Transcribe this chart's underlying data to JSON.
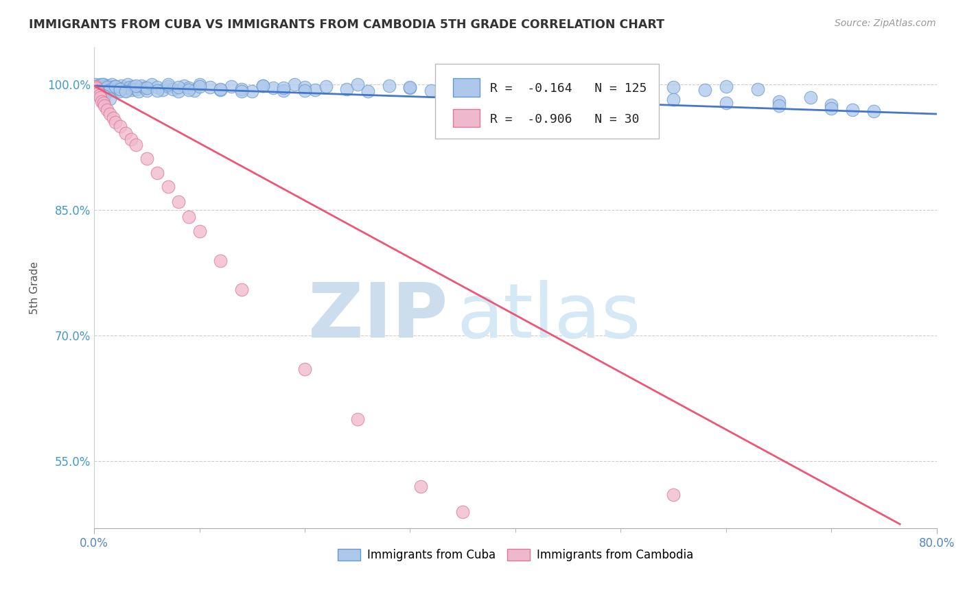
{
  "title": "IMMIGRANTS FROM CUBA VS IMMIGRANTS FROM CAMBODIA 5TH GRADE CORRELATION CHART",
  "source": "Source: ZipAtlas.com",
  "ylabel": "5th Grade",
  "xlim": [
    0.0,
    0.8
  ],
  "ylim": [
    0.47,
    1.045
  ],
  "xtick_positions": [
    0.0,
    0.8
  ],
  "xticklabels": [
    "0.0%",
    "80.0%"
  ],
  "yticks": [
    0.55,
    0.7,
    0.85,
    1.0
  ],
  "yticklabels": [
    "55.0%",
    "70.0%",
    "85.0%",
    "100.0%"
  ],
  "blue_color": "#adc8eb",
  "blue_edge": "#6699cc",
  "pink_color": "#f0b8cc",
  "pink_edge": "#dd7799",
  "blue_line_color": "#4477cc",
  "pink_line_color": "#ee5577",
  "legend_R_blue": "-0.164",
  "legend_N_blue": "125",
  "legend_R_pink": "-0.906",
  "legend_N_pink": "30",
  "watermark_zip": "ZIP",
  "watermark_atlas": "atlas",
  "watermark_color": "#cce0f5",
  "background_color": "#ffffff",
  "blue_line_x": [
    0.0,
    0.8
  ],
  "blue_line_y": [
    0.9985,
    0.965
  ],
  "pink_line_x": [
    0.0,
    0.765
  ],
  "pink_line_y": [
    0.9985,
    0.475
  ],
  "blue_scatter_x": [
    0.001,
    0.001,
    0.002,
    0.002,
    0.003,
    0.003,
    0.004,
    0.004,
    0.005,
    0.005,
    0.006,
    0.006,
    0.007,
    0.007,
    0.008,
    0.008,
    0.009,
    0.009,
    0.01,
    0.01,
    0.011,
    0.012,
    0.013,
    0.014,
    0.015,
    0.016,
    0.017,
    0.018,
    0.019,
    0.02,
    0.022,
    0.024,
    0.026,
    0.028,
    0.03,
    0.032,
    0.034,
    0.036,
    0.038,
    0.04,
    0.042,
    0.045,
    0.048,
    0.05,
    0.055,
    0.06,
    0.065,
    0.07,
    0.075,
    0.08,
    0.085,
    0.09,
    0.095,
    0.1,
    0.11,
    0.12,
    0.13,
    0.14,
    0.15,
    0.16,
    0.17,
    0.18,
    0.19,
    0.2,
    0.21,
    0.22,
    0.24,
    0.26,
    0.28,
    0.3,
    0.32,
    0.34,
    0.36,
    0.38,
    0.4,
    0.42,
    0.44,
    0.46,
    0.48,
    0.5,
    0.52,
    0.55,
    0.58,
    0.6,
    0.63,
    0.65,
    0.68,
    0.7,
    0.72,
    0.74,
    0.003,
    0.005,
    0.008,
    0.012,
    0.015,
    0.02,
    0.025,
    0.03,
    0.04,
    0.05,
    0.06,
    0.07,
    0.08,
    0.09,
    0.1,
    0.12,
    0.14,
    0.16,
    0.18,
    0.2,
    0.25,
    0.3,
    0.35,
    0.4,
    0.45,
    0.5,
    0.55,
    0.6,
    0.65,
    0.7,
    0.002,
    0.004,
    0.006,
    0.01,
    0.015
  ],
  "blue_scatter_y": [
    1.0,
    0.995,
    0.998,
    0.992,
    0.997,
    0.994,
    0.999,
    0.991,
    0.996,
    0.993,
    1.0,
    0.998,
    0.995,
    0.992,
    0.999,
    0.996,
    0.993,
    1.0,
    0.997,
    0.994,
    0.998,
    0.995,
    0.992,
    0.999,
    0.996,
    0.993,
    1.0,
    0.997,
    0.994,
    0.998,
    0.995,
    0.992,
    0.999,
    0.996,
    0.993,
    1.0,
    0.997,
    0.994,
    0.998,
    0.995,
    0.992,
    0.999,
    0.996,
    0.993,
    1.0,
    0.997,
    0.994,
    0.998,
    0.995,
    0.992,
    0.999,
    0.996,
    0.993,
    1.0,
    0.997,
    0.994,
    0.998,
    0.995,
    0.992,
    0.999,
    0.996,
    0.993,
    1.0,
    0.997,
    0.994,
    0.998,
    0.995,
    0.992,
    0.999,
    0.996,
    0.993,
    1.0,
    0.997,
    0.994,
    0.998,
    0.995,
    0.992,
    0.999,
    0.996,
    0.993,
    1.0,
    0.997,
    0.994,
    0.998,
    0.995,
    0.98,
    0.985,
    0.976,
    0.97,
    0.968,
    0.996,
    0.993,
    1.0,
    0.997,
    0.994,
    0.998,
    0.995,
    0.992,
    0.999,
    0.996,
    0.993,
    1.0,
    0.997,
    0.994,
    0.998,
    0.995,
    0.992,
    0.999,
    0.996,
    0.993,
    1.0,
    0.997,
    0.994,
    0.99,
    0.988,
    0.985,
    0.982,
    0.978,
    0.975,
    0.972,
    0.995,
    0.992,
    0.989,
    0.986,
    0.983
  ],
  "pink_scatter_x": [
    0.001,
    0.002,
    0.003,
    0.004,
    0.005,
    0.006,
    0.007,
    0.009,
    0.01,
    0.012,
    0.015,
    0.018,
    0.02,
    0.025,
    0.03,
    0.035,
    0.04,
    0.05,
    0.06,
    0.07,
    0.08,
    0.09,
    0.1,
    0.12,
    0.14,
    0.2,
    0.25,
    0.31,
    0.35,
    0.55
  ],
  "pink_scatter_y": [
    0.998,
    0.996,
    0.993,
    0.99,
    0.987,
    0.985,
    0.98,
    0.978,
    0.975,
    0.97,
    0.965,
    0.96,
    0.955,
    0.95,
    0.942,
    0.935,
    0.928,
    0.912,
    0.895,
    0.878,
    0.86,
    0.842,
    0.825,
    0.79,
    0.755,
    0.66,
    0.6,
    0.52,
    0.49,
    0.51
  ]
}
